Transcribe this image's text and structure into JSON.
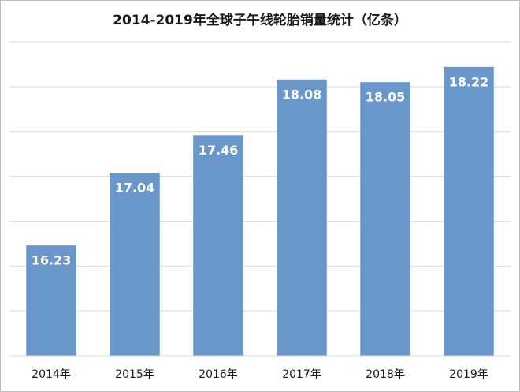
{
  "chart_data": {
    "type": "bar",
    "title": "2014-2019年全球子午线轮胎销量统计（亿条）",
    "categories": [
      "2014年",
      "2015年",
      "2016年",
      "2017年",
      "2018年",
      "2019年"
    ],
    "values": [
      16.23,
      17.04,
      17.46,
      18.08,
      18.05,
      18.22
    ],
    "color": "#6a97c9",
    "ylim": [
      15,
      18.5
    ],
    "yticks": [
      15,
      15.5,
      16,
      16.5,
      17,
      17.5,
      18,
      18.5
    ],
    "grid": true
  }
}
